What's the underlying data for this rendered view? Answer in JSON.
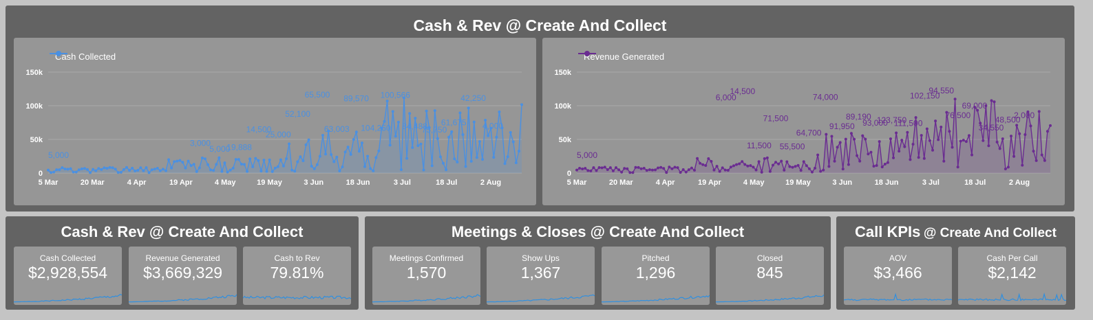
{
  "top": {
    "title": "Cash & Rev @ Create And Collect",
    "charts": [
      {
        "legend": "Cash Collected",
        "color": "#4a90e2",
        "y_ticks": [
          "150k",
          "100k",
          "50k",
          "0"
        ],
        "x_ticks": [
          "5 Mar",
          "20 Mar",
          "4 Apr",
          "19 Apr",
          "4 May",
          "19 May",
          "3 Jun",
          "18 Jun",
          "3 Jul",
          "18 Jul",
          "2 Aug"
        ],
        "labels": [
          "5,000",
          "3,000",
          "5,000",
          "19,888",
          "14,500",
          "25,000",
          "52,100",
          "65,500",
          "63,003",
          "89,570",
          "104,250",
          "100,566",
          "84,488",
          "75,750",
          "61,675",
          "42,250",
          "4,000"
        ]
      },
      {
        "legend": "Revenue Generated",
        "color": "#6a2c91",
        "y_ticks": [
          "150k",
          "100k",
          "50k",
          "0"
        ],
        "x_ticks": [
          "5 Mar",
          "20 Mar",
          "4 Apr",
          "19 Apr",
          "4 May",
          "19 May",
          "3 Jun",
          "18 Jun",
          "3 Jul",
          "18 Jul",
          "2 Aug"
        ],
        "labels": [
          "5,000",
          "6,000",
          "14,500",
          "11,500",
          "71,500",
          "55,500",
          "64,700",
          "74,000",
          "91,950",
          "89,190",
          "93,000",
          "123,750",
          "111,500",
          "102,150",
          "94,550",
          "76,500",
          "69,000",
          "34,550",
          "48,500",
          "2,000"
        ]
      }
    ]
  },
  "sections": [
    {
      "title": "Cash & Rev @ Create And Collect",
      "cards": [
        {
          "label": "Cash Collected",
          "value": "$2,928,554"
        },
        {
          "label": "Revenue Generated",
          "value": "$3,669,329"
        },
        {
          "label": "Cash to Rev",
          "value": "79.81%"
        }
      ]
    },
    {
      "title": "Meetings & Closes @ Create And Collect",
      "cards": [
        {
          "label": "Meetings Confirmed",
          "value": "1,570"
        },
        {
          "label": "Show Ups",
          "value": "1,367"
        },
        {
          "label": "Pitched",
          "value": "1,296"
        },
        {
          "label": "Closed",
          "value": "845"
        }
      ]
    },
    {
      "title_main": "Call KPIs",
      "title_sub": "@ Create And Collect",
      "cards": [
        {
          "label": "AOV",
          "value": "$3,466"
        },
        {
          "label": "Cash Per Call",
          "value": "$2,142"
        }
      ]
    }
  ],
  "sparkline_color": "#2f8fe0"
}
